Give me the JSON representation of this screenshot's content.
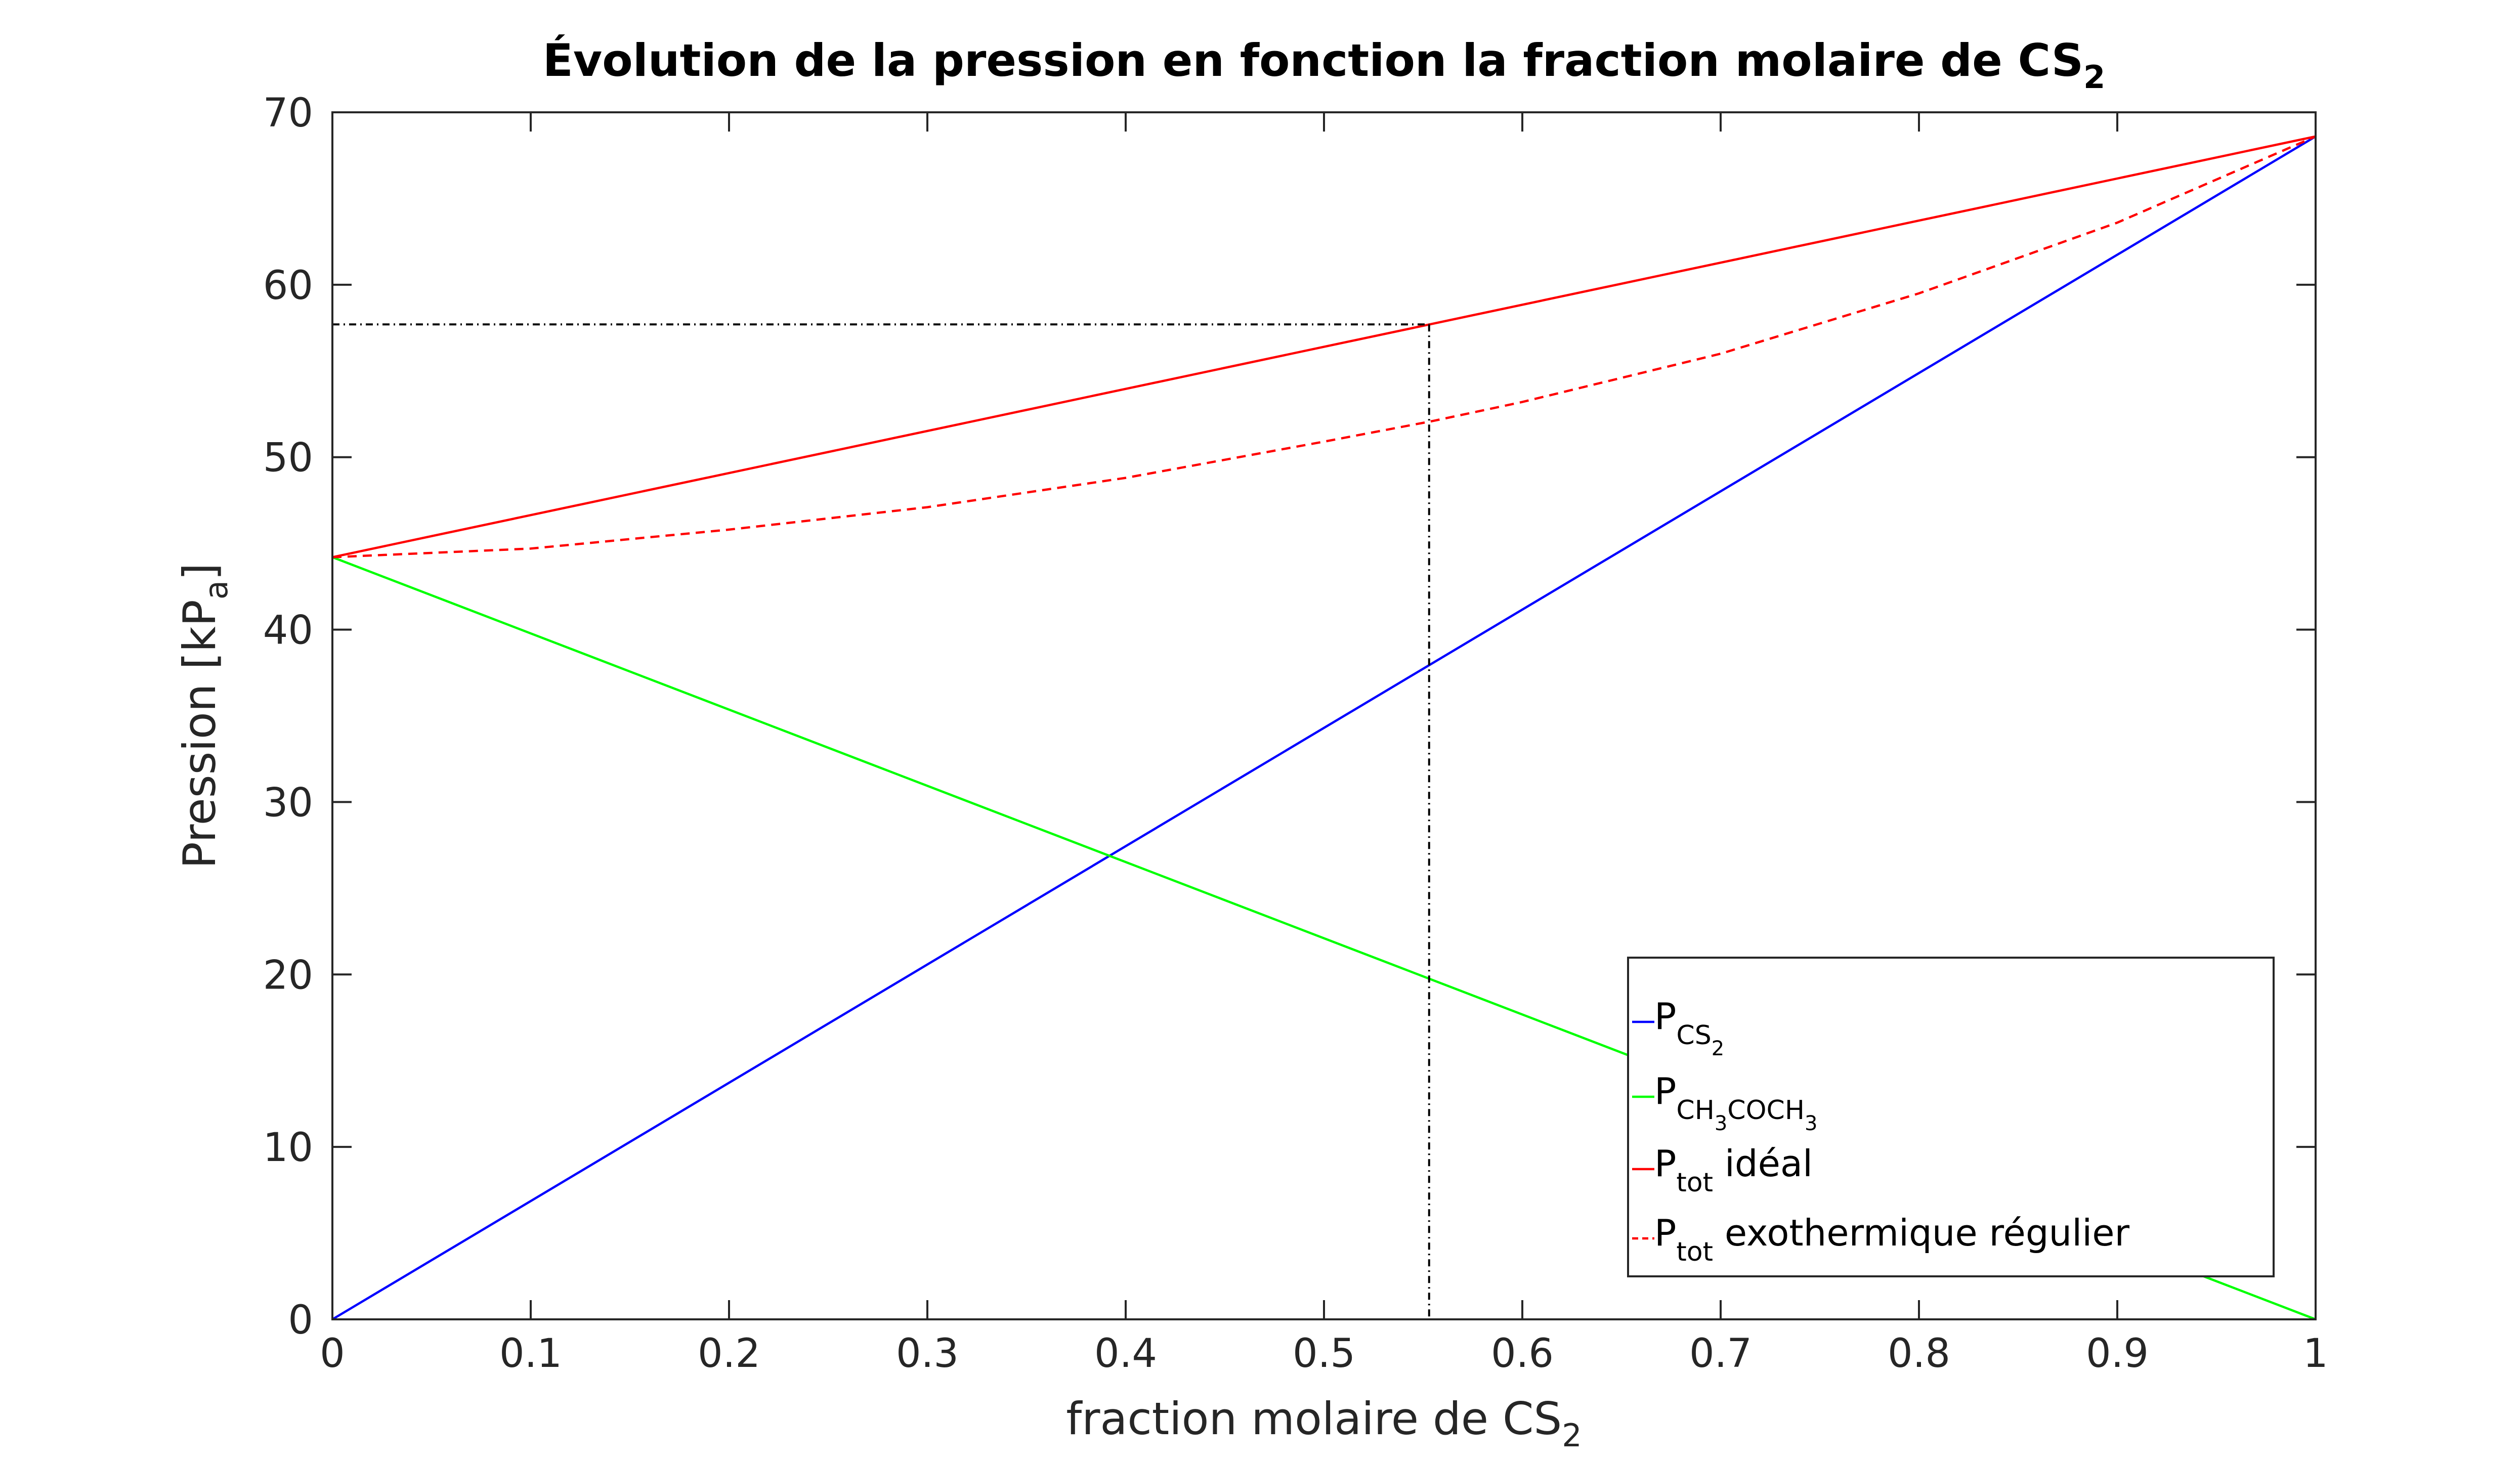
{
  "chart_data": {
    "type": "line",
    "title": {
      "main": "Évolution de la pression en fonction la fraction molaire de CS",
      "sub": "2"
    },
    "xlabel": {
      "main": "fraction molaire de CS",
      "sub": "2"
    },
    "ylabel": {
      "main": "Pression [kP",
      "sub": "a",
      "close": "]"
    },
    "xlim": [
      0,
      1
    ],
    "ylim": [
      0,
      70
    ],
    "xticks": [
      0,
      0.1,
      0.2,
      0.3,
      0.4,
      0.5,
      0.6,
      0.7,
      0.8,
      0.9,
      1
    ],
    "xtick_labels": [
      "0",
      "0.1",
      "0.2",
      "0.3",
      "0.4",
      "0.5",
      "0.6",
      "0.7",
      "0.8",
      "0.9",
      "1"
    ],
    "yticks": [
      0,
      10,
      20,
      30,
      40,
      50,
      60,
      70
    ],
    "ytick_labels": [
      "0",
      "10",
      "20",
      "30",
      "40",
      "50",
      "60",
      "70"
    ],
    "grid": false,
    "legend_position": "bottom-right",
    "series": [
      {
        "name": "P_CS2",
        "legend": {
          "main": "P",
          "sub": "CS",
          "subsub": "2",
          "suffix": ""
        },
        "color": "#0000ff",
        "style": "solid",
        "x": [
          0,
          1
        ],
        "y": [
          0,
          68.6
        ]
      },
      {
        "name": "P_CH3COCH3",
        "legend": {
          "main": "P",
          "sub": "CH",
          "subsub": "3",
          "sub2": "COCH",
          "subsub2": "3",
          "suffix": ""
        },
        "color": "#00ff00",
        "style": "solid",
        "x": [
          0,
          1
        ],
        "y": [
          44.2,
          0
        ]
      },
      {
        "name": "P_tot idéal",
        "legend": {
          "main": "P",
          "sub": "tot",
          "suffix": " idéal"
        },
        "color": "#ff0000",
        "style": "solid",
        "x": [
          0,
          1
        ],
        "y": [
          44.2,
          68.6
        ]
      },
      {
        "name": "P_tot exothermique régulier",
        "legend": {
          "main": "P",
          "sub": "tot",
          "suffix": " exothermique régulier"
        },
        "color": "#ff0000",
        "style": "dashed",
        "x": [
          0,
          0.1,
          0.2,
          0.3,
          0.4,
          0.5,
          0.555,
          0.6,
          0.7,
          0.8,
          0.9,
          1
        ],
        "y": [
          44.2,
          44.7,
          45.8,
          47.1,
          48.8,
          50.9,
          52.1,
          53.2,
          56.0,
          59.5,
          63.6,
          68.6
        ]
      }
    ],
    "annotations": [
      {
        "type": "reference-lines",
        "x": 0.553,
        "y": 57.7,
        "color": "#000000",
        "style": "dash-dot"
      }
    ]
  }
}
